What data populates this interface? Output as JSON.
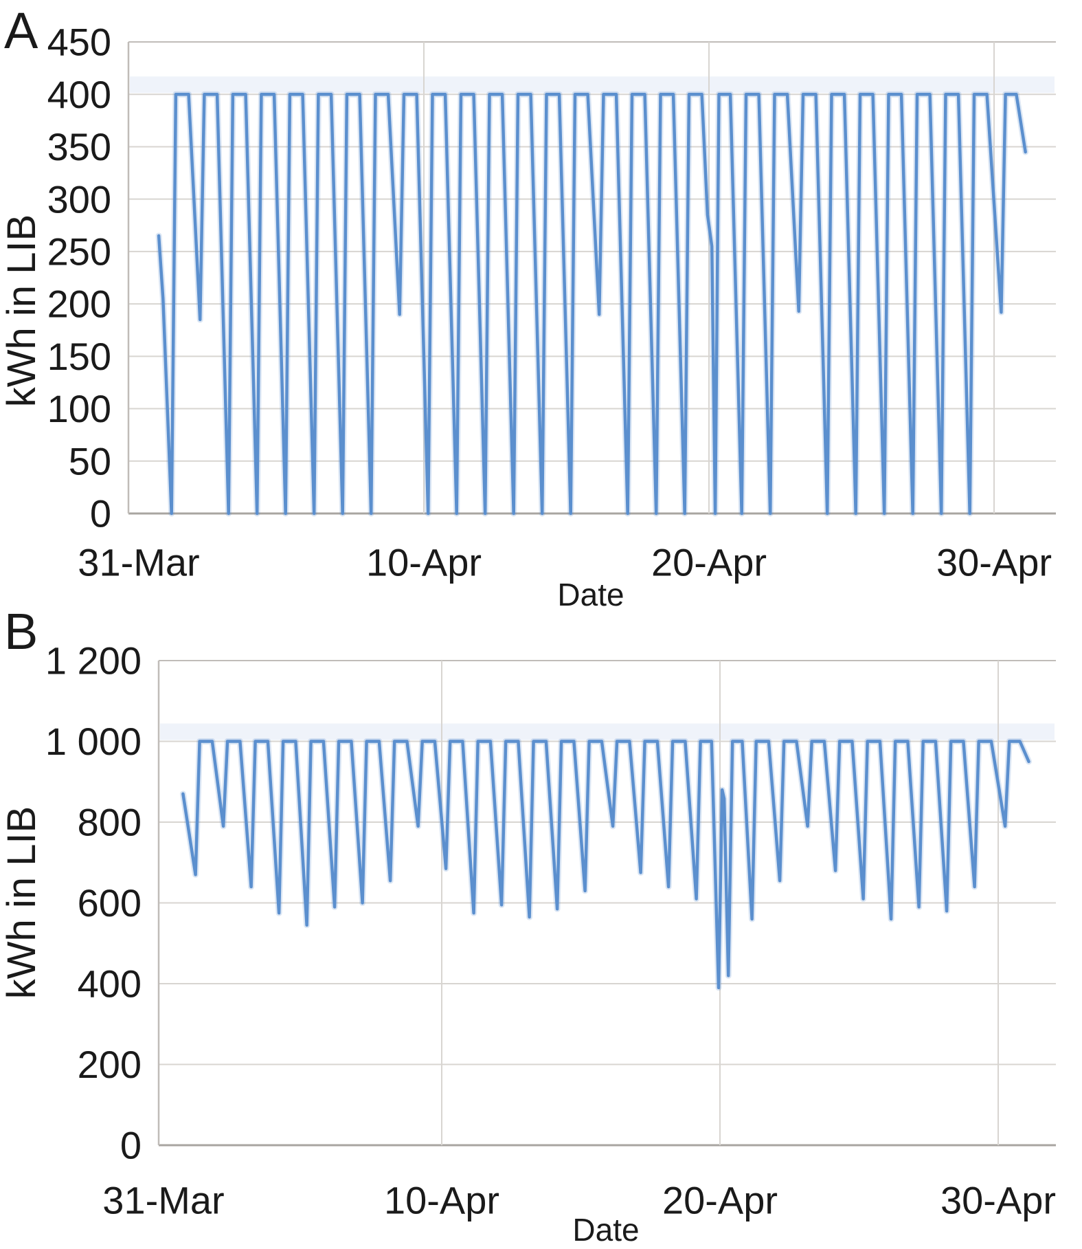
{
  "figure": {
    "background": "#ffffff",
    "text_color": "#1a1a1a",
    "line_color": "#5b8fce",
    "line_halo_color": "rgba(91,143,206,0.22)",
    "grid_color": "#d8d5d1",
    "border_color": "#c0bcb8",
    "axis_line_color": "#a8a5a1",
    "haze_color": "rgba(120,160,210,0.12)"
  },
  "chart_data": [
    {
      "id": "A",
      "type": "line",
      "panel_label": "A",
      "title": "",
      "xlabel": "Date",
      "ylabel": "kWh in LIB",
      "grid": true,
      "legend": "none",
      "x_axis": {
        "unit": "days since 31-Mar",
        "tick_days": [
          0,
          10,
          20,
          30
        ],
        "tick_labels": [
          "31-Mar",
          "10-Apr",
          "20-Apr",
          "30-Apr"
        ]
      },
      "y_axis": {
        "min": 0,
        "max": 450,
        "step": 50,
        "tick_values": [
          0,
          50,
          100,
          150,
          200,
          250,
          300,
          350,
          400,
          450
        ],
        "tick_labels": [
          "0",
          "50",
          "100",
          "150",
          "200",
          "250",
          "300",
          "350",
          "400",
          "450"
        ]
      },
      "series": [
        {
          "name": "kWh in LIB",
          "points": [
            [
              0.7,
              265
            ],
            [
              0.85,
              205
            ],
            [
              1.15,
              0
            ],
            [
              1.3,
              400
            ],
            [
              1.75,
              400
            ],
            [
              2.15,
              185
            ],
            [
              2.3,
              400
            ],
            [
              2.75,
              400
            ],
            [
              3.15,
              0
            ],
            [
              3.3,
              400
            ],
            [
              3.75,
              400
            ],
            [
              4.15,
              0
            ],
            [
              4.3,
              400
            ],
            [
              4.75,
              400
            ],
            [
              5.15,
              0
            ],
            [
              5.3,
              400
            ],
            [
              5.75,
              400
            ],
            [
              6.15,
              0
            ],
            [
              6.3,
              400
            ],
            [
              6.75,
              400
            ],
            [
              7.15,
              0
            ],
            [
              7.3,
              400
            ],
            [
              7.75,
              400
            ],
            [
              8.15,
              0
            ],
            [
              8.3,
              400
            ],
            [
              8.75,
              400
            ],
            [
              9.15,
              190
            ],
            [
              9.3,
              400
            ],
            [
              9.75,
              400
            ],
            [
              10.15,
              0
            ],
            [
              10.3,
              400
            ],
            [
              10.75,
              400
            ],
            [
              11.15,
              0
            ],
            [
              11.3,
              400
            ],
            [
              11.75,
              400
            ],
            [
              12.15,
              0
            ],
            [
              12.3,
              400
            ],
            [
              12.75,
              400
            ],
            [
              13.15,
              0
            ],
            [
              13.3,
              400
            ],
            [
              13.75,
              400
            ],
            [
              14.15,
              0
            ],
            [
              14.3,
              400
            ],
            [
              14.75,
              400
            ],
            [
              15.15,
              0
            ],
            [
              15.3,
              400
            ],
            [
              15.75,
              400
            ],
            [
              16.15,
              190
            ],
            [
              16.3,
              400
            ],
            [
              16.75,
              400
            ],
            [
              17.15,
              0
            ],
            [
              17.3,
              400
            ],
            [
              17.75,
              400
            ],
            [
              18.15,
              0
            ],
            [
              18.3,
              400
            ],
            [
              18.75,
              400
            ],
            [
              19.15,
              0
            ],
            [
              19.3,
              400
            ],
            [
              19.75,
              400
            ],
            [
              19.95,
              285
            ],
            [
              20.1,
              255
            ],
            [
              20.22,
              0
            ],
            [
              20.35,
              400
            ],
            [
              20.75,
              400
            ],
            [
              21.15,
              0
            ],
            [
              21.3,
              400
            ],
            [
              21.75,
              400
            ],
            [
              22.15,
              0
            ],
            [
              22.3,
              400
            ],
            [
              22.75,
              400
            ],
            [
              23.15,
              193
            ],
            [
              23.3,
              400
            ],
            [
              23.75,
              400
            ],
            [
              24.15,
              0
            ],
            [
              24.3,
              400
            ],
            [
              24.75,
              400
            ],
            [
              25.15,
              0
            ],
            [
              25.3,
              400
            ],
            [
              25.75,
              400
            ],
            [
              26.15,
              0
            ],
            [
              26.3,
              400
            ],
            [
              26.75,
              400
            ],
            [
              27.15,
              0
            ],
            [
              27.3,
              400
            ],
            [
              27.75,
              400
            ],
            [
              28.15,
              0
            ],
            [
              28.3,
              400
            ],
            [
              28.75,
              400
            ],
            [
              29.15,
              0
            ],
            [
              29.3,
              400
            ],
            [
              29.75,
              400
            ],
            [
              30.25,
              192
            ],
            [
              30.4,
              400
            ],
            [
              30.78,
              400
            ],
            [
              31.1,
              345
            ]
          ]
        }
      ]
    },
    {
      "id": "B",
      "type": "line",
      "panel_label": "B",
      "title": "",
      "xlabel": "Date",
      "ylabel": "kWh in LIB",
      "grid": true,
      "legend": "none",
      "x_axis": {
        "unit": "days since 31-Mar",
        "tick_days": [
          0,
          10,
          20,
          30
        ],
        "tick_labels": [
          "31-Mar",
          "10-Apr",
          "20-Apr",
          "30-Apr"
        ]
      },
      "y_axis": {
        "min": 0,
        "max": 1200,
        "step": 200,
        "tick_values": [
          0,
          200,
          400,
          600,
          800,
          1000,
          1200
        ],
        "tick_labels": [
          "0",
          "200",
          "400",
          "600",
          "800",
          "1 000",
          "1 200"
        ]
      },
      "series": [
        {
          "name": "kWh in LIB",
          "points": [
            [
              0.7,
              870
            ],
            [
              1.15,
              670
            ],
            [
              1.3,
              1000
            ],
            [
              1.75,
              1000
            ],
            [
              2.15,
              790
            ],
            [
              2.3,
              1000
            ],
            [
              2.75,
              1000
            ],
            [
              3.15,
              640
            ],
            [
              3.3,
              1000
            ],
            [
              3.75,
              1000
            ],
            [
              4.15,
              575
            ],
            [
              4.3,
              1000
            ],
            [
              4.75,
              1000
            ],
            [
              5.15,
              545
            ],
            [
              5.3,
              1000
            ],
            [
              5.75,
              1000
            ],
            [
              6.15,
              590
            ],
            [
              6.3,
              1000
            ],
            [
              6.75,
              1000
            ],
            [
              7.15,
              600
            ],
            [
              7.3,
              1000
            ],
            [
              7.75,
              1000
            ],
            [
              8.15,
              655
            ],
            [
              8.3,
              1000
            ],
            [
              8.75,
              1000
            ],
            [
              9.15,
              790
            ],
            [
              9.3,
              1000
            ],
            [
              9.75,
              1000
            ],
            [
              10.15,
              685
            ],
            [
              10.3,
              1000
            ],
            [
              10.75,
              1000
            ],
            [
              11.15,
              575
            ],
            [
              11.3,
              1000
            ],
            [
              11.75,
              1000
            ],
            [
              12.15,
              595
            ],
            [
              12.3,
              1000
            ],
            [
              12.75,
              1000
            ],
            [
              13.15,
              565
            ],
            [
              13.3,
              1000
            ],
            [
              13.75,
              1000
            ],
            [
              14.15,
              585
            ],
            [
              14.3,
              1000
            ],
            [
              14.75,
              1000
            ],
            [
              15.15,
              630
            ],
            [
              15.3,
              1000
            ],
            [
              15.75,
              1000
            ],
            [
              16.15,
              790
            ],
            [
              16.3,
              1000
            ],
            [
              16.75,
              1000
            ],
            [
              17.15,
              675
            ],
            [
              17.3,
              1000
            ],
            [
              17.75,
              1000
            ],
            [
              18.15,
              640
            ],
            [
              18.3,
              1000
            ],
            [
              18.75,
              1000
            ],
            [
              19.15,
              610
            ],
            [
              19.3,
              1000
            ],
            [
              19.7,
              1000
            ],
            [
              19.95,
              390
            ],
            [
              20.08,
              880
            ],
            [
              20.15,
              858
            ],
            [
              20.3,
              420
            ],
            [
              20.45,
              1000
            ],
            [
              20.8,
              1000
            ],
            [
              21.15,
              560
            ],
            [
              21.3,
              1000
            ],
            [
              21.75,
              1000
            ],
            [
              22.15,
              655
            ],
            [
              22.3,
              1000
            ],
            [
              22.75,
              1000
            ],
            [
              23.15,
              790
            ],
            [
              23.3,
              1000
            ],
            [
              23.75,
              1000
            ],
            [
              24.15,
              680
            ],
            [
              24.3,
              1000
            ],
            [
              24.75,
              1000
            ],
            [
              25.15,
              610
            ],
            [
              25.3,
              1000
            ],
            [
              25.75,
              1000
            ],
            [
              26.15,
              560
            ],
            [
              26.3,
              1000
            ],
            [
              26.75,
              1000
            ],
            [
              27.15,
              590
            ],
            [
              27.3,
              1000
            ],
            [
              27.75,
              1000
            ],
            [
              28.15,
              580
            ],
            [
              28.3,
              1000
            ],
            [
              28.75,
              1000
            ],
            [
              29.15,
              640
            ],
            [
              29.3,
              1000
            ],
            [
              29.75,
              1000
            ],
            [
              30.25,
              790
            ],
            [
              30.4,
              1000
            ],
            [
              30.78,
              1000
            ],
            [
              31.1,
              950
            ]
          ]
        }
      ]
    }
  ]
}
